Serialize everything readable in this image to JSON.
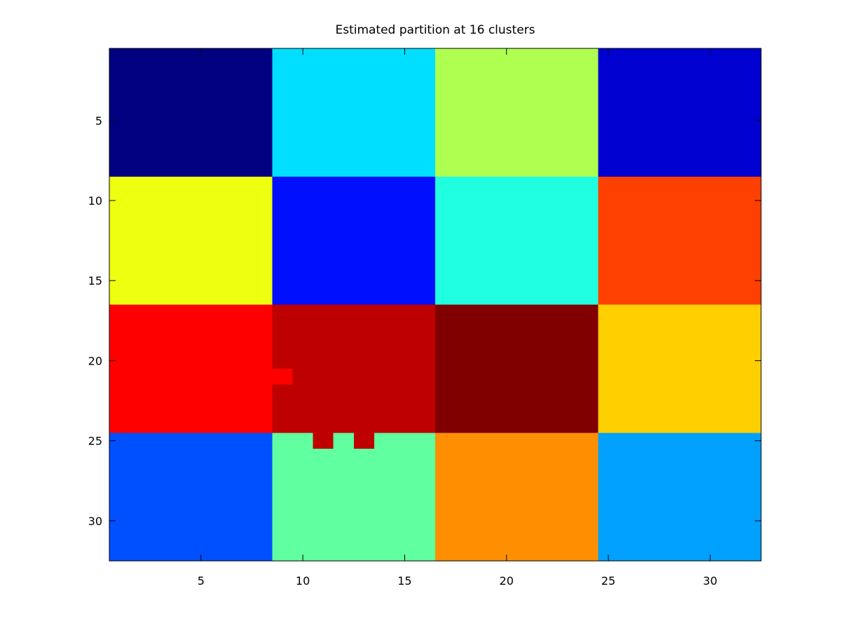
{
  "chart_data": {
    "type": "heatmap",
    "title": "Estimated partition at 16 clusters",
    "xlabel": "",
    "ylabel": "",
    "xlim": [
      0.5,
      32.5
    ],
    "ylim": [
      0.5,
      32.5
    ],
    "y_reversed": true,
    "grid": false,
    "x_ticks": [
      5,
      10,
      15,
      20,
      25,
      30
    ],
    "y_ticks": [
      5,
      10,
      15,
      20,
      25,
      30
    ],
    "blocks": [
      {
        "cols": [
          1,
          8
        ],
        "rows": [
          1,
          8
        ],
        "color": "#000080"
      },
      {
        "cols": [
          9,
          16
        ],
        "rows": [
          1,
          8
        ],
        "color": "#00dfff"
      },
      {
        "cols": [
          17,
          24
        ],
        "rows": [
          1,
          8
        ],
        "color": "#afff50"
      },
      {
        "cols": [
          25,
          32
        ],
        "rows": [
          1,
          8
        ],
        "color": "#0000d0"
      },
      {
        "cols": [
          1,
          8
        ],
        "rows": [
          9,
          16
        ],
        "color": "#efff10"
      },
      {
        "cols": [
          9,
          16
        ],
        "rows": [
          9,
          16
        ],
        "color": "#0010ff"
      },
      {
        "cols": [
          17,
          24
        ],
        "rows": [
          9,
          16
        ],
        "color": "#20ffdf"
      },
      {
        "cols": [
          25,
          32
        ],
        "rows": [
          9,
          16
        ],
        "color": "#ff4000"
      },
      {
        "cols": [
          1,
          8
        ],
        "rows": [
          17,
          24
        ],
        "color": "#ff0000"
      },
      {
        "cols": [
          9,
          16
        ],
        "rows": [
          17,
          24
        ],
        "color": "#bf0000"
      },
      {
        "cols": [
          17,
          24
        ],
        "rows": [
          17,
          24
        ],
        "color": "#800000"
      },
      {
        "cols": [
          25,
          32
        ],
        "rows": [
          17,
          24
        ],
        "color": "#ffcf00"
      },
      {
        "cols": [
          1,
          8
        ],
        "rows": [
          25,
          32
        ],
        "color": "#0050ff"
      },
      {
        "cols": [
          9,
          16
        ],
        "rows": [
          25,
          32
        ],
        "color": "#60ff9f"
      },
      {
        "cols": [
          17,
          24
        ],
        "rows": [
          25,
          32
        ],
        "color": "#ff8f00"
      },
      {
        "cols": [
          25,
          32
        ],
        "rows": [
          25,
          32
        ],
        "color": "#00a0ff"
      }
    ],
    "misassigned_cells": [
      {
        "col": 9,
        "row": 21,
        "color": "#ff0000"
      },
      {
        "col": 11,
        "row": 25,
        "color": "#bf0000"
      },
      {
        "col": 13,
        "row": 25,
        "color": "#bf0000"
      }
    ]
  }
}
